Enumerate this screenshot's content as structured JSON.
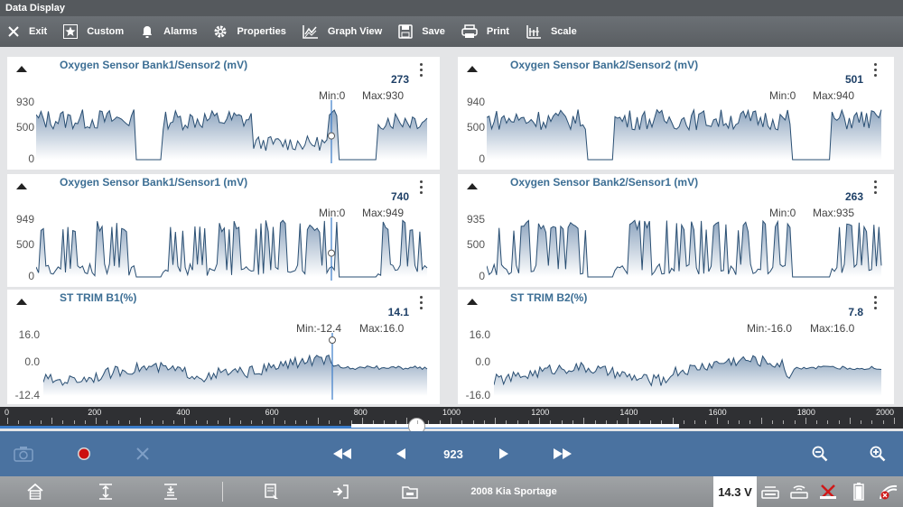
{
  "app": {
    "title": "Data  Display"
  },
  "toolbar": {
    "items": [
      {
        "label": "Exit",
        "icon": "close-icon"
      },
      {
        "label": "Custom",
        "icon": "star-icon"
      },
      {
        "label": "Alarms",
        "icon": "bell-icon"
      },
      {
        "label": "Properties",
        "icon": "gear-icon"
      },
      {
        "label": "Graph View",
        "icon": "graph-icon"
      },
      {
        "label": "Save",
        "icon": "floppy-icon"
      },
      {
        "label": "Print",
        "icon": "printer-icon"
      },
      {
        "label": "Scale",
        "icon": "scale-icon"
      }
    ]
  },
  "panels": [
    {
      "title": "Oxygen Sensor Bank1/Sensor2 (mV)",
      "value": "273",
      "min": "Min:0",
      "max": "Max:930",
      "yticks": [
        "930",
        "500",
        "0"
      ],
      "ymin": 0,
      "ymax": 930
    },
    {
      "title": "Oxygen Sensor Bank2/Sensor2 (mV)",
      "value": "501",
      "min": "Min:0",
      "max": "Max:940",
      "yticks": [
        "940",
        "500",
        "0"
      ],
      "ymin": 0,
      "ymax": 940
    },
    {
      "title": "Oxygen Sensor Bank1/Sensor1 (mV)",
      "value": "740",
      "min": "Min:0",
      "max": "Max:949",
      "yticks": [
        "949",
        "500",
        "0"
      ],
      "ymin": 0,
      "ymax": 949
    },
    {
      "title": "Oxygen Sensor Bank2/Sensor1 (mV)",
      "value": "263",
      "min": "Min:0",
      "max": "Max:935",
      "yticks": [
        "935",
        "500",
        "0"
      ],
      "ymin": 0,
      "ymax": 935
    },
    {
      "title": "ST TRIM B1(%)",
      "value": "14.1",
      "min": "Min:-12.4",
      "max": "Max:16.0",
      "yticks": [
        "16.0",
        "0.0",
        "-12.4"
      ],
      "ymin": -12.4,
      "ymax": 16.0
    },
    {
      "title": "ST TRIM B2(%)",
      "value": "7.8",
      "min": "Min:-16.0",
      "max": "Max:16.0",
      "yticks": [
        "16.0",
        "0.0",
        "-16.0"
      ],
      "ymin": -16.0,
      "ymax": 16.0
    }
  ],
  "scale": {
    "min": 0,
    "max": 2000,
    "labels": [
      "0",
      "200",
      "400",
      "600",
      "800",
      "1000",
      "1200",
      "1400",
      "1600",
      "1800",
      "2000"
    ],
    "cursor": 923
  },
  "controls": {
    "position": "923",
    "left": [
      {
        "icon": "camera-icon"
      },
      {
        "icon": "record-icon"
      },
      {
        "icon": "clear-icon"
      }
    ],
    "nav": [
      {
        "icon": "fast-rewind-icon"
      },
      {
        "icon": "step-back-icon"
      },
      {
        "icon": "step-forward-icon"
      },
      {
        "icon": "fast-forward-icon"
      }
    ],
    "zoom": [
      {
        "icon": "zoom-out-icon"
      },
      {
        "icon": "zoom-in-icon"
      }
    ]
  },
  "status": {
    "vehicle": "2008 Kia Sportage",
    "voltage": "14.3 V"
  },
  "colors": {
    "accent": "#4a72a0",
    "title": "#3c6e94",
    "trace": "#2a4f73"
  }
}
